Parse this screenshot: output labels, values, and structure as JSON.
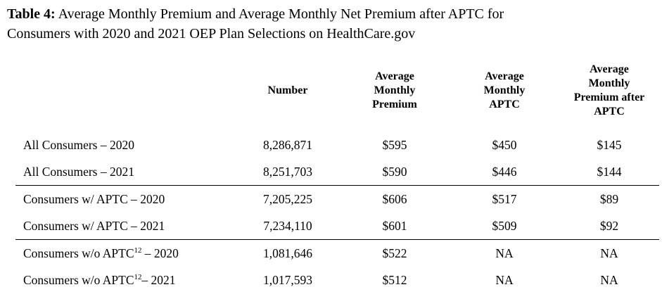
{
  "title": {
    "bold": "Table 4:",
    "line1_rest": " Average Monthly Premium and Average Monthly Net Premium after APTC for",
    "line2": "Consumers with 2020 and 2021 OEP Plan Selections on HealthCare.gov"
  },
  "table": {
    "columns": {
      "number": "Number",
      "avg_premium": "Average\nMonthly\nPremium",
      "avg_aptc": "Average\nMonthly\nAPTC",
      "avg_after": "Average\nMonthly\nPremium after\nAPTC"
    },
    "sections": [
      {
        "rows": [
          {
            "label": "All Consumers – 2020",
            "sup": "",
            "label2": "",
            "number": "8,286,871",
            "premium": "$595",
            "aptc": "$450",
            "after": "$145"
          },
          {
            "label": "All Consumers – 2021",
            "sup": "",
            "label2": "",
            "number": "8,251,703",
            "premium": "$590",
            "aptc": "$446",
            "after": "$144"
          }
        ]
      },
      {
        "rows": [
          {
            "label": "Consumers w/ APTC – 2020",
            "sup": "",
            "label2": "",
            "number": "7,205,225",
            "premium": "$606",
            "aptc": "$517",
            "after": "$89"
          },
          {
            "label": "Consumers w/ APTC – 2021",
            "sup": "",
            "label2": "",
            "number": "7,234,110",
            "premium": "$601",
            "aptc": "$509",
            "after": "$92"
          }
        ]
      },
      {
        "rows": [
          {
            "label": "Consumers w/o APTC",
            "sup": "12",
            "label2": " – 2020",
            "number": "1,081,646",
            "premium": "$522",
            "aptc": "NA",
            "after": "NA"
          },
          {
            "label": "Consumers w/o APTC",
            "sup": "12",
            "label2": "– 2021",
            "number": "1,017,593",
            "premium": "$512",
            "aptc": "NA",
            "after": "NA"
          }
        ]
      }
    ]
  }
}
